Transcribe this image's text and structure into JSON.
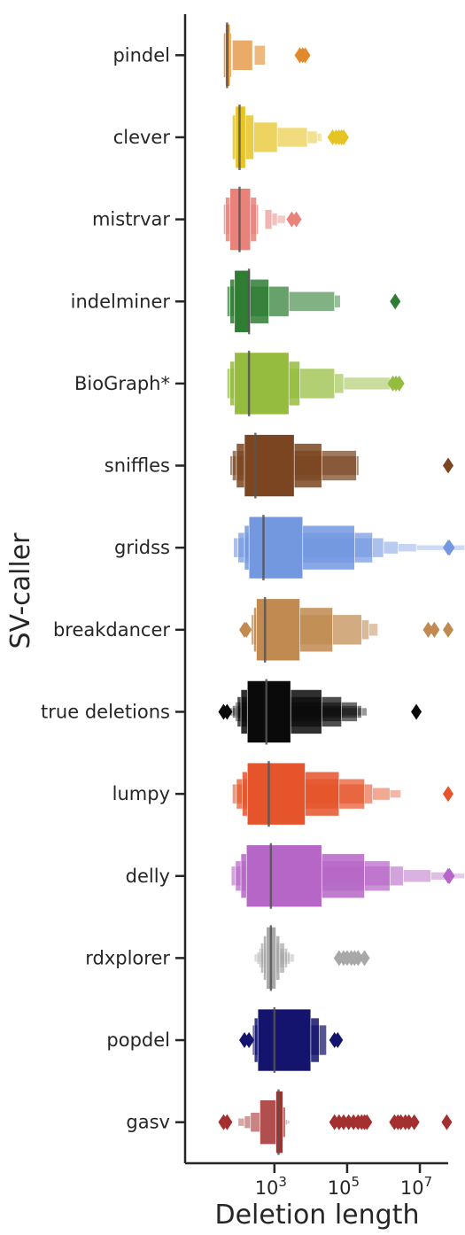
{
  "chart_data": {
    "type": "boxen",
    "orientation": "horizontal",
    "xlabel": "Deletion length",
    "ylabel": "SV-caller",
    "xscale": "log",
    "xlim": [
      3.5,
      60000000
    ],
    "xticks": [
      {
        "value": 1000,
        "base": "10",
        "exp": "3"
      },
      {
        "value": 100000,
        "base": "10",
        "exp": "5"
      },
      {
        "value": 10000000,
        "base": "10",
        "exp": "7"
      }
    ],
    "grid": false,
    "series": [
      {
        "name": "pindel",
        "color": "#e08a2c",
        "median": 50,
        "boxes": [
          [
            45,
            60
          ],
          [
            40,
            65
          ],
          [
            70,
            250
          ],
          [
            280,
            560
          ]
        ],
        "outliers": [
          5000,
          6000,
          7000
        ]
      },
      {
        "name": "clever",
        "color": "#e6c424",
        "median": 110,
        "boxes": [
          [
            85,
            160
          ],
          [
            70,
            270
          ],
          [
            270,
            1200
          ],
          [
            1200,
            8000
          ],
          [
            8000,
            15000
          ],
          [
            15000,
            20000
          ]
        ],
        "outliers": [
          40000,
          50000,
          60000,
          70000,
          80000
        ]
      },
      {
        "name": "mistrvar",
        "color": "#e8827a",
        "median": 110,
        "boxes": [
          [
            60,
            220
          ],
          [
            45,
            320
          ],
          [
            40,
            360
          ],
          [
            550,
            850
          ],
          [
            850,
            1200
          ],
          [
            1200,
            2000
          ]
        ],
        "outliers": [
          3000,
          4000
        ]
      },
      {
        "name": "indelminer",
        "color": "#2e7d32",
        "median": 200,
        "boxes": [
          [
            80,
            215
          ],
          [
            60,
            700
          ],
          [
            50,
            2500
          ],
          [
            2500,
            45000
          ],
          [
            45000,
            65000
          ]
        ],
        "outliers": [
          2100000
        ]
      },
      {
        "name": "BioGraph*",
        "color": "#95bc3e",
        "median": 200,
        "boxes": [
          [
            80,
            2500
          ],
          [
            60,
            5000
          ],
          [
            50,
            45000
          ],
          [
            45000,
            80000
          ],
          [
            80000,
            1500000
          ],
          [
            1500000,
            2500000
          ]
        ],
        "outliers": [
          1800000,
          2200000,
          2700000
        ]
      },
      {
        "name": "sniffles",
        "color": "#7a4520",
        "median": 300,
        "boxes": [
          [
            150,
            3500
          ],
          [
            90,
            20000
          ],
          [
            70,
            180000
          ],
          [
            60,
            210000
          ]
        ],
        "outliers": [
          60000000
        ]
      },
      {
        "name": "gridss",
        "color": "#7398e0",
        "median": 500,
        "boxes": [
          [
            200,
            6000
          ],
          [
            150,
            160000
          ],
          [
            100,
            500000
          ],
          [
            75,
            1000000
          ],
          [
            1000000,
            2500000
          ],
          [
            2500000,
            8000000
          ],
          [
            8000000,
            170000000
          ]
        ],
        "outliers": [
          60000000,
          65000000
        ]
      },
      {
        "name": "breakdancer",
        "color": "#c08a50",
        "median": 550,
        "boxes": [
          [
            320,
            5000
          ],
          [
            270,
            40000
          ],
          [
            230,
            250000
          ],
          [
            250000,
            400000
          ],
          [
            400000,
            700000
          ]
        ],
        "outliers": [
          150,
          170,
          17000000,
          25000000,
          60000000
        ]
      },
      {
        "name": "true deletions",
        "color": "#0a0a0a",
        "median": 600,
        "boxes": [
          [
            180,
            2800
          ],
          [
            120,
            20000
          ],
          [
            95,
            70000
          ],
          [
            85,
            190000
          ],
          [
            70,
            250000
          ],
          [
            60,
            350000
          ]
        ],
        "outliers": [
          40,
          50,
          8000000
        ]
      },
      {
        "name": "lumpy",
        "color": "#e5542a",
        "median": 700,
        "boxes": [
          [
            180,
            7000
          ],
          [
            130,
            60000
          ],
          [
            90,
            300000
          ],
          [
            70,
            500000
          ],
          [
            500000,
            1500000
          ],
          [
            1500000,
            3000000
          ]
        ],
        "outliers": [
          60000000
        ]
      },
      {
        "name": "delly",
        "color": "#b566c6",
        "median": 800,
        "boxes": [
          [
            170,
            20000
          ],
          [
            120,
            300000
          ],
          [
            85,
            1500000
          ],
          [
            65,
            3500000
          ],
          [
            3500000,
            20000000
          ],
          [
            20000000,
            70000000
          ],
          [
            70000000,
            170000000
          ]
        ],
        "outliers": [
          60000000,
          65000000
        ]
      },
      {
        "name": "rdxplorer",
        "color": "#a8a8a8",
        "median": 800,
        "boxes": [
          [
            600,
            1100
          ],
          [
            500,
            1400
          ],
          [
            420,
            1900
          ],
          [
            380,
            2300
          ],
          [
            330,
            2700
          ],
          [
            280,
            3500
          ]
        ],
        "outliers": [
          60000,
          80000,
          100000,
          130000,
          160000,
          200000,
          300000
        ]
      },
      {
        "name": "popdel",
        "color": "#14146e",
        "median": 1000,
        "boxes": [
          [
            350,
            10000
          ],
          [
            280,
            17000
          ],
          [
            250,
            27000
          ]
        ],
        "outliers": [
          150,
          200,
          45000,
          55000
        ]
      },
      {
        "name": "gasv",
        "color": "#a3302f",
        "median": 1300,
        "boxes": [
          [
            1100,
            1700
          ],
          [
            400,
            1100
          ],
          [
            1700,
            2000
          ],
          [
            220,
            400
          ],
          [
            150,
            220
          ],
          [
            100,
            150
          ],
          [
            2000,
            2300
          ],
          [
            2300,
            2600
          ]
        ],
        "outliers": [
          40,
          50,
          45000,
          60000,
          80000,
          110000,
          150000,
          200000,
          250000,
          300000,
          350000,
          2000000,
          2500000,
          3000000,
          4000000,
          5000000,
          7000000,
          55000000
        ]
      }
    ]
  }
}
